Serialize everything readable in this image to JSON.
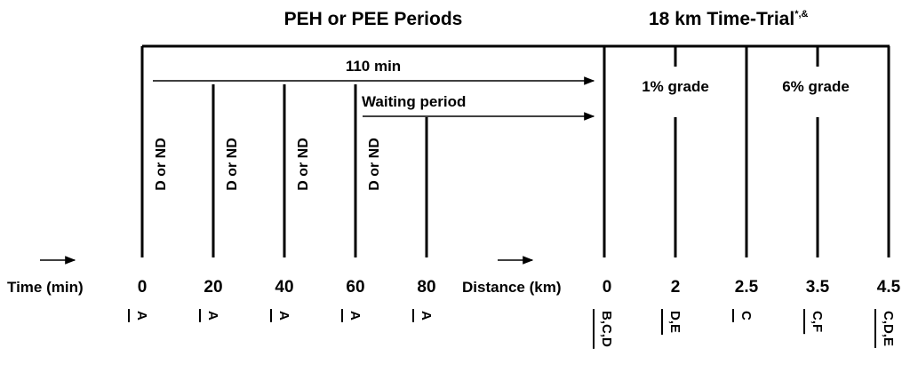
{
  "header": {
    "left_title": "PEH or PEE Periods",
    "right_title": "18 km Time-Trial",
    "right_title_superscript": "*,&"
  },
  "annotations": {
    "total_duration": "110 min",
    "waiting": "Waiting period",
    "grade_1": "1% grade",
    "grade_6": "6% grade"
  },
  "time_axis": {
    "label": "Time (min)",
    "ticks": [
      "0",
      "20",
      "40",
      "60",
      "80"
    ],
    "events": [
      "D or ND",
      "D or ND",
      "D or ND",
      "D or ND"
    ],
    "samples": [
      "A",
      "A",
      "A",
      "A",
      "A"
    ]
  },
  "distance_axis": {
    "label": "Distance (km)",
    "ticks": [
      "0",
      "2",
      "2.5",
      "3.5",
      "4.5"
    ],
    "samples": [
      "B,C,D",
      "D,E",
      "C",
      "C,F",
      "C,D,E"
    ]
  }
}
